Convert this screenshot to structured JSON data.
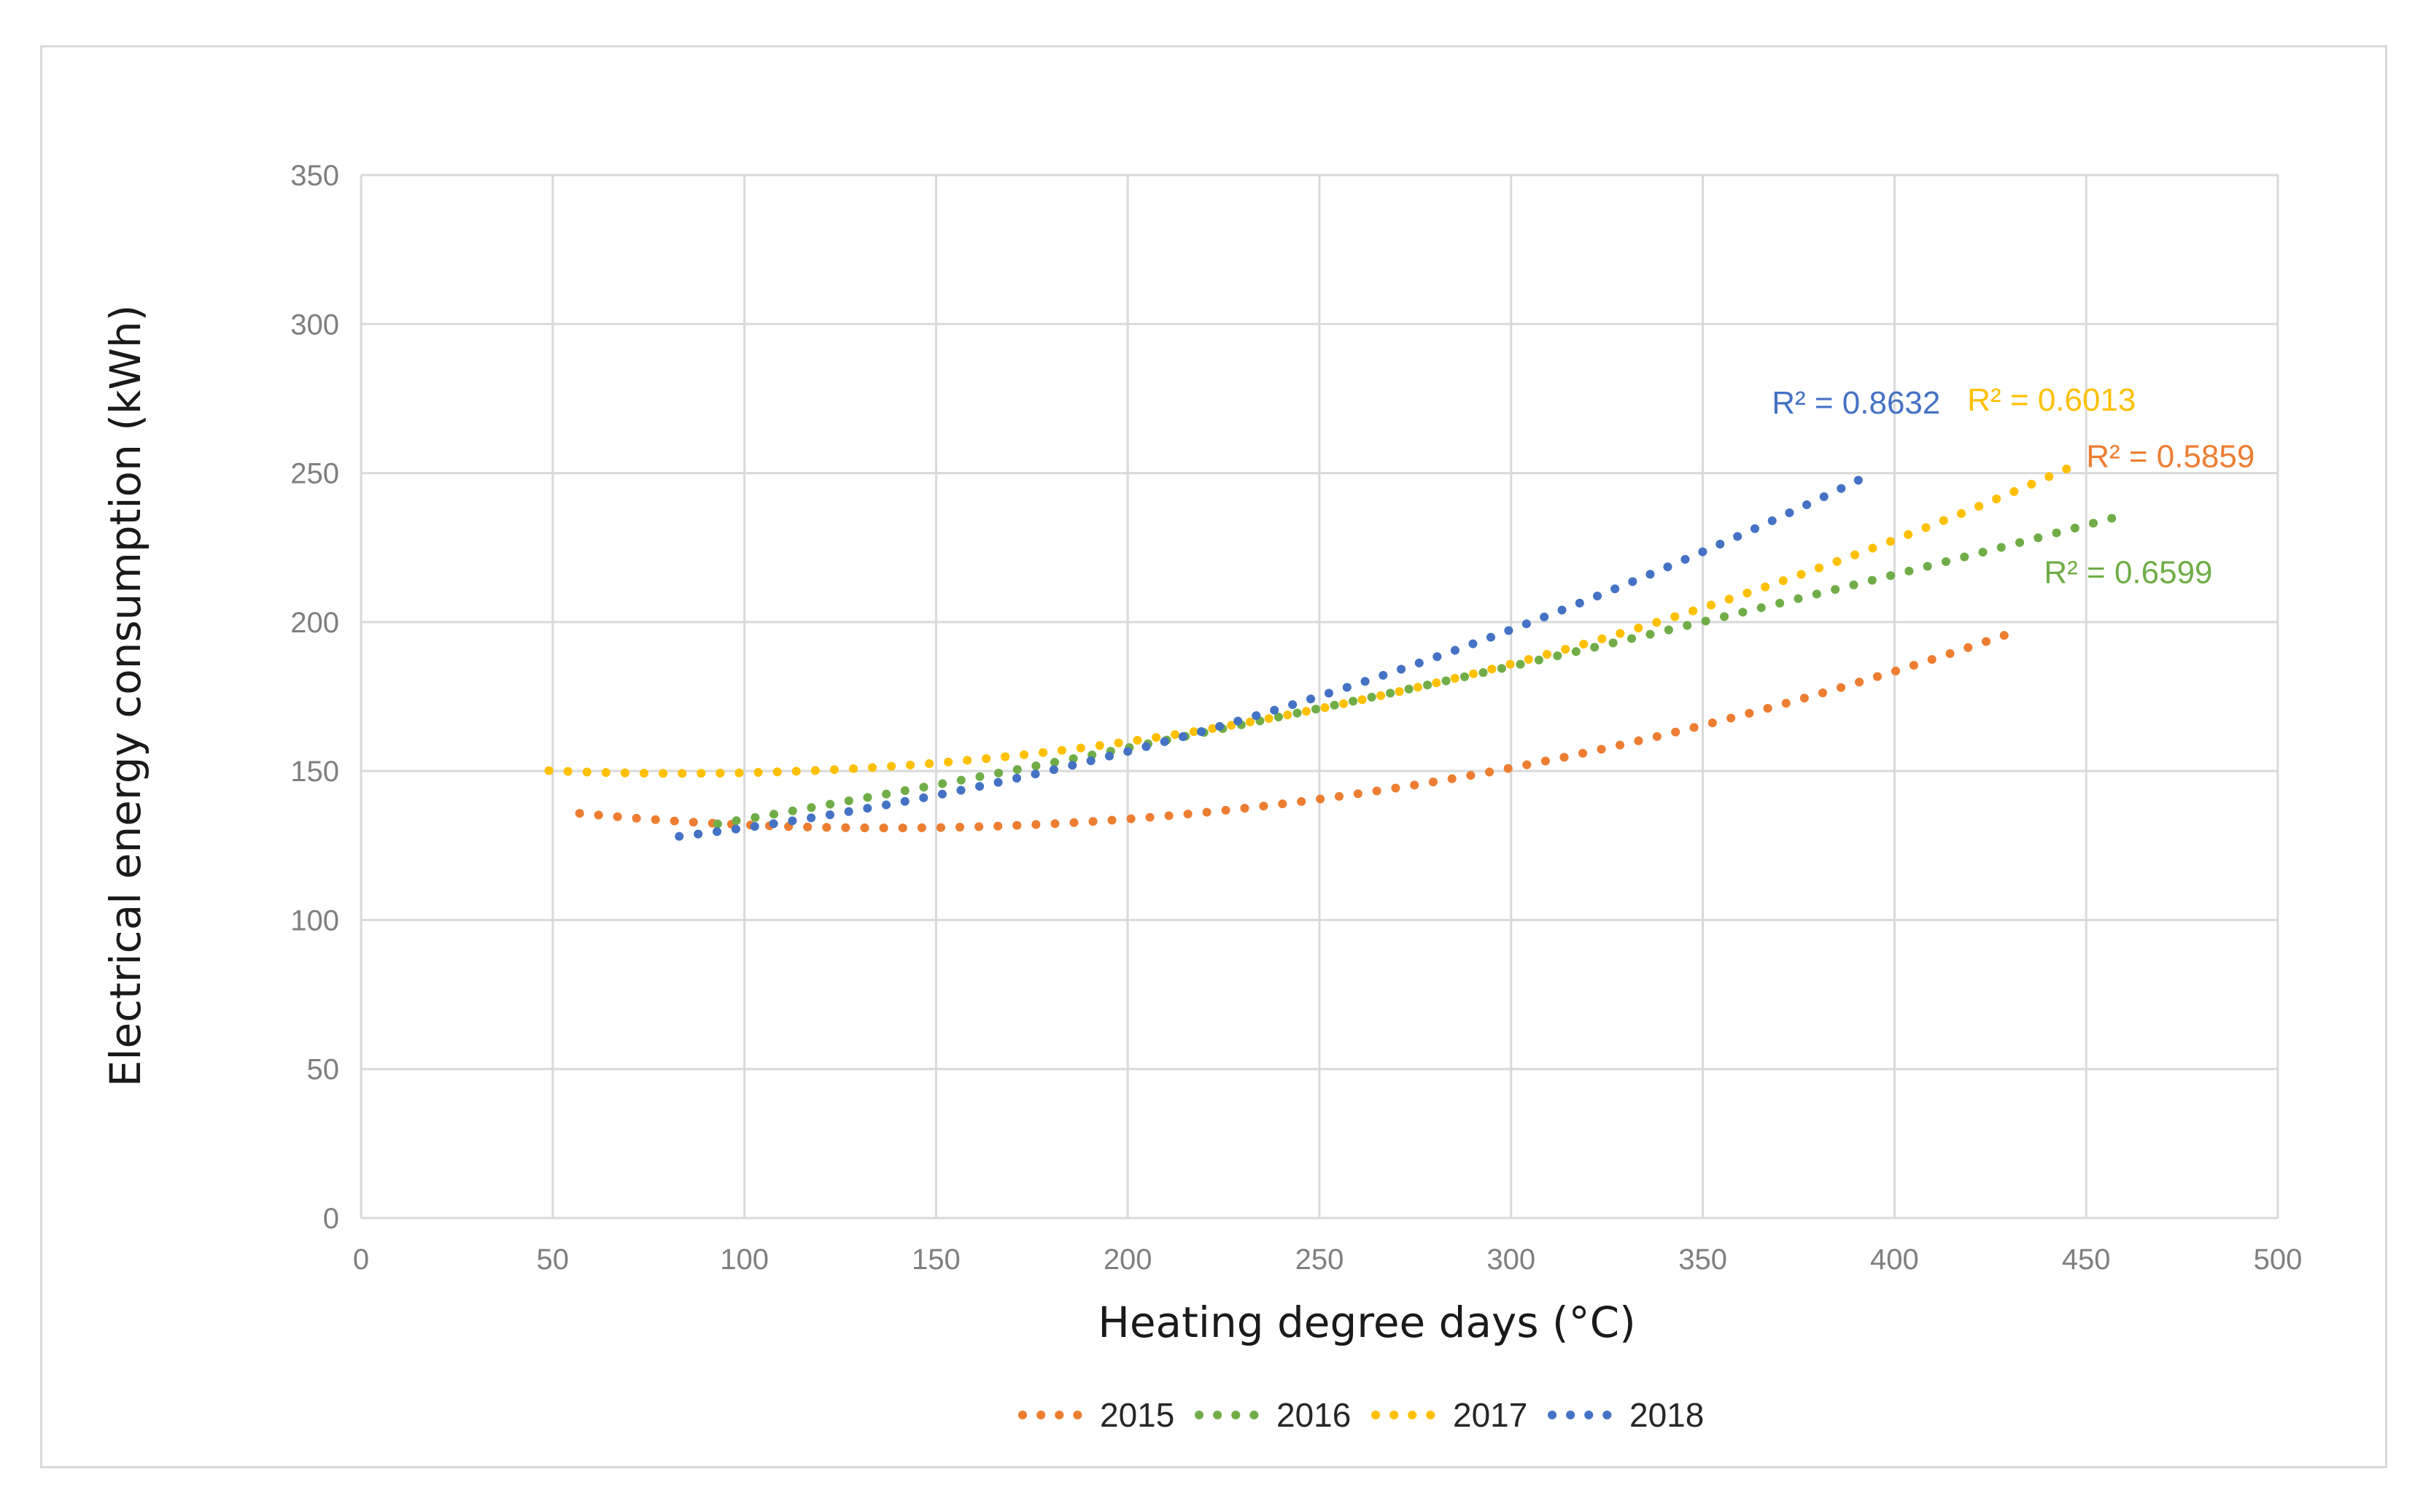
{
  "chart_data": {
    "type": "line",
    "title": "",
    "xlabel": "Heating degree days (°C)",
    "ylabel": "Electrical energy consumption (kWh)",
    "xlim": [
      0,
      500
    ],
    "ylim": [
      0,
      350
    ],
    "xticks": [
      0,
      50,
      100,
      150,
      200,
      250,
      300,
      350,
      400,
      450,
      500
    ],
    "yticks": [
      0,
      50,
      100,
      150,
      200,
      250,
      300,
      350
    ],
    "grid": true,
    "legend_position": "bottom",
    "line_style": "dotted",
    "series": [
      {
        "name": "2015",
        "color": "#ED7D31",
        "x_range": [
          57,
          429
        ],
        "poly": [
          145.27,
          -0.20916,
          0.0007616
        ],
        "r2_label": "R² = 0.5859",
        "r2_anchor": [
          450,
          252
        ]
      },
      {
        "name": "2016",
        "color": "#70AD47",
        "x_range": [
          93,
          458
        ],
        "poly": [
          113.22,
          0.18893,
          0.0001694
        ],
        "r2_label": "R² = 0.6599",
        "r2_anchor": [
          439,
          213
        ]
      },
      {
        "name": "2017",
        "color": "#FFC000",
        "x_range": [
          49,
          449
        ],
        "poly": [
          154.63,
          -0.13009,
          0.0007812
        ],
        "r2_label": "R² = 0.6013",
        "r2_anchor": [
          419,
          271
        ]
      },
      {
        "name": "2018",
        "color": "#4472C4",
        "x_range": [
          83,
          395
        ],
        "poly": [
          120.47,
          0.028535,
          0.0007603
        ],
        "r2_label": "R² = 0.8632",
        "r2_anchor": [
          368,
          270
        ]
      }
    ]
  }
}
